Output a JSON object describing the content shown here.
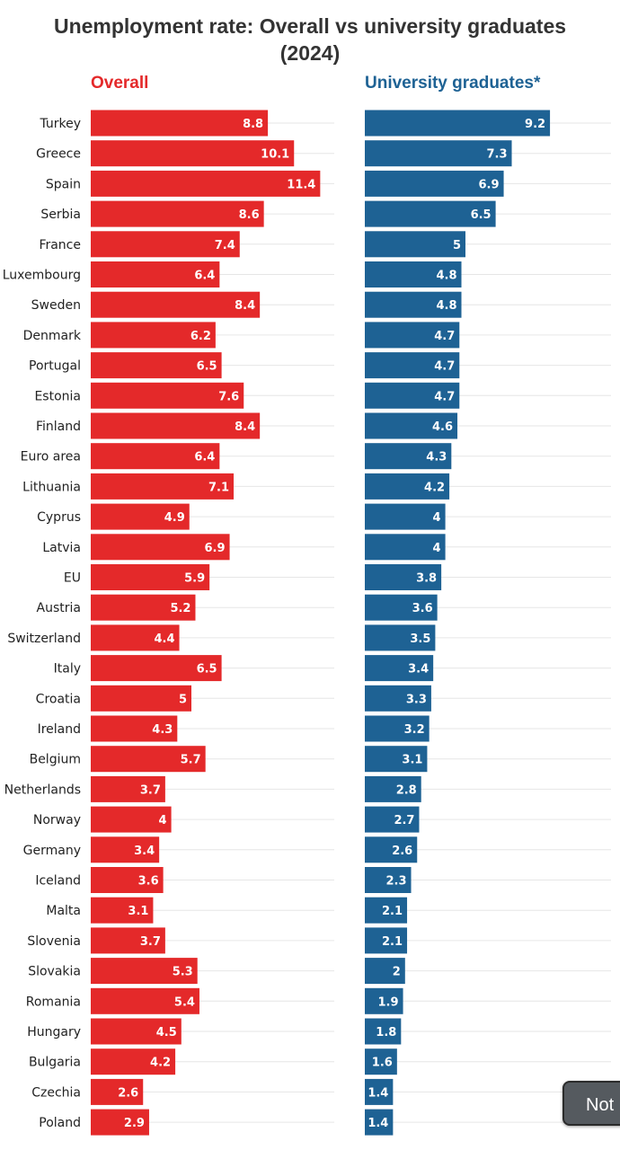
{
  "title_line1": "Unemployment rate: Overall vs university graduates",
  "title_line2": "(2024)",
  "colors": {
    "overall": "#e4292a",
    "graduates": "#1e6294"
  },
  "note_button": "Not",
  "chart_data": {
    "type": "bar",
    "orientation": "horizontal",
    "title": "Unemployment rate: Overall vs university graduates (2024)",
    "grid": true,
    "categories": [
      "Turkey",
      "Greece",
      "Spain",
      "Serbia",
      "France",
      "Luxembourg",
      "Sweden",
      "Denmark",
      "Portugal",
      "Estonia",
      "Finland",
      "Euro area",
      "Lithuania",
      "Cyprus",
      "Latvia",
      "EU",
      "Austria",
      "Switzerland",
      "Italy",
      "Croatia",
      "Ireland",
      "Belgium",
      "Netherlands",
      "Norway",
      "Germany",
      "Iceland",
      "Malta",
      "Slovenia",
      "Slovakia",
      "Romania",
      "Hungary",
      "Bulgaria",
      "Czechia",
      "Poland"
    ],
    "series": [
      {
        "name": "Overall",
        "values": [
          8.8,
          10.1,
          11.4,
          8.6,
          7.4,
          6.4,
          8.4,
          6.2,
          6.5,
          7.6,
          8.4,
          6.4,
          7.1,
          4.9,
          6.9,
          5.9,
          5.2,
          4.4,
          6.5,
          5,
          4.3,
          5.7,
          3.7,
          4,
          3.4,
          3.6,
          3.1,
          3.7,
          5.3,
          5.4,
          4.5,
          4.2,
          2.6,
          2.9
        ]
      },
      {
        "name": "University graduates*",
        "values": [
          9.2,
          7.3,
          6.9,
          6.5,
          5,
          4.8,
          4.8,
          4.7,
          4.7,
          4.7,
          4.6,
          4.3,
          4.2,
          4,
          4,
          3.8,
          3.6,
          3.5,
          3.4,
          3.3,
          3.2,
          3.1,
          2.8,
          2.7,
          2.6,
          2.3,
          2.1,
          2.1,
          2,
          1.9,
          1.8,
          1.6,
          1.4,
          1.4
        ]
      }
    ]
  }
}
